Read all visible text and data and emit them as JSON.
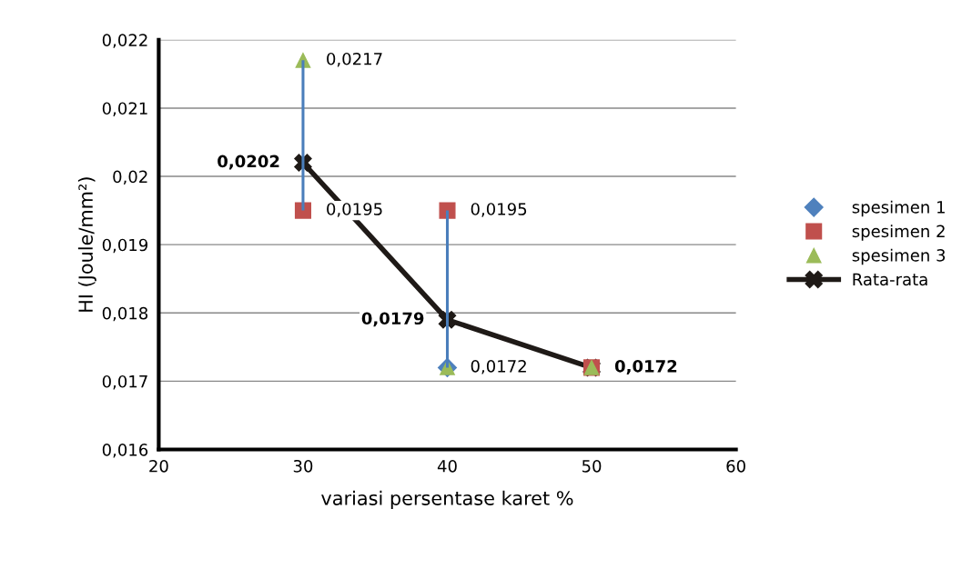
{
  "chart_data": {
    "type": "scatter",
    "xlabel": "variasi persentase karet %",
    "ylabel": "HI (Joule/mm²)",
    "x": [
      30,
      40,
      50
    ],
    "xlim": [
      20,
      60
    ],
    "xticks": [
      20,
      30,
      40,
      50,
      60
    ],
    "ylim": [
      0.016,
      0.022
    ],
    "yticks": [
      {
        "value": 0.016,
        "label": "0,016"
      },
      {
        "value": 0.017,
        "label": "0,017"
      },
      {
        "value": 0.018,
        "label": "0,018"
      },
      {
        "value": 0.019,
        "label": "0,019"
      },
      {
        "value": 0.02,
        "label": "0,02"
      },
      {
        "value": 0.021,
        "label": "0,021"
      },
      {
        "value": 0.022,
        "label": "0,022"
      }
    ],
    "grid": "y",
    "legend": "right",
    "series": [
      {
        "name": "spesimen 1",
        "type": "scatter",
        "marker": "diamond",
        "color": "#4f81bd",
        "values": [
          null,
          0.0172,
          null
        ],
        "value_labels": [
          null,
          "0,0172",
          null
        ]
      },
      {
        "name": "spesimen 2",
        "type": "scatter",
        "marker": "square",
        "color": "#c0504d",
        "values": [
          0.0195,
          0.0195,
          0.0172
        ],
        "value_labels": [
          "0,0195",
          "0,0195",
          null
        ]
      },
      {
        "name": "spesimen 3",
        "type": "scatter",
        "marker": "triangle",
        "color": "#9bbb59",
        "values": [
          0.0217,
          0.0172,
          0.0172
        ],
        "value_labels": [
          "0,0217",
          null,
          null
        ]
      },
      {
        "name": "Rata-rata",
        "type": "line",
        "marker": "cross",
        "color": "#1f1a17",
        "values": [
          0.0202,
          0.0179,
          0.0172
        ],
        "value_labels": [
          "0,0202",
          "0,0179",
          "0,0172"
        ],
        "errors": [
          [
            0.0195,
            0.0217
          ],
          [
            0.0172,
            0.0195
          ],
          null
        ]
      }
    ]
  }
}
